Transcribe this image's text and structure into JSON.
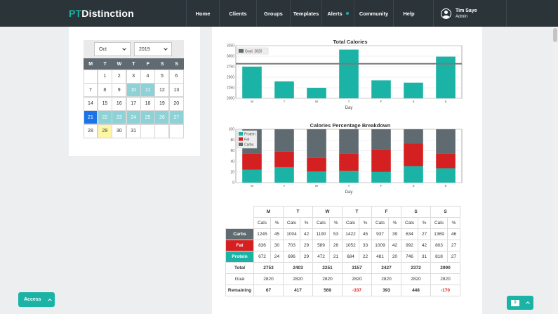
{
  "nav": {
    "logo_pt": "PT",
    "logo_rest": "Distinction",
    "items": [
      {
        "label": "Home",
        "width": 47
      },
      {
        "label": "Clients",
        "width": 53
      },
      {
        "label": "Groups",
        "width": 48
      },
      {
        "label": "Templates",
        "width": 45
      },
      {
        "label": "Alerts",
        "width": 46
      },
      {
        "label": "Community",
        "width": 56
      },
      {
        "label": "Help",
        "width": 44
      }
    ],
    "user_name": "Tim Saye",
    "user_role": "Admin"
  },
  "calendar": {
    "month": "Oct",
    "year": "2019",
    "weekdays": [
      "M",
      "T",
      "W",
      "T",
      "F",
      "S",
      "S"
    ],
    "cells": [
      {
        "d": ""
      },
      {
        "d": "1"
      },
      {
        "d": "2"
      },
      {
        "d": "3"
      },
      {
        "d": "4"
      },
      {
        "d": "5"
      },
      {
        "d": "6"
      },
      {
        "d": "7"
      },
      {
        "d": "8"
      },
      {
        "d": "9"
      },
      {
        "d": "10",
        "s": "teal"
      },
      {
        "d": "11",
        "s": "teal"
      },
      {
        "d": "12"
      },
      {
        "d": "13"
      },
      {
        "d": "14"
      },
      {
        "d": "15"
      },
      {
        "d": "16"
      },
      {
        "d": "17"
      },
      {
        "d": "18"
      },
      {
        "d": "19"
      },
      {
        "d": "20"
      },
      {
        "d": "21",
        "s": "sel-day"
      },
      {
        "d": "22",
        "s": "teal"
      },
      {
        "d": "23",
        "s": "teal"
      },
      {
        "d": "24",
        "s": "teal"
      },
      {
        "d": "25",
        "s": "teal"
      },
      {
        "d": "26",
        "s": "teal"
      },
      {
        "d": "27",
        "s": "teal"
      },
      {
        "d": "28"
      },
      {
        "d": "29",
        "s": "today"
      },
      {
        "d": "30"
      },
      {
        "d": "31"
      },
      {
        "d": ""
      },
      {
        "d": ""
      },
      {
        "d": ""
      }
    ]
  },
  "colors": {
    "teal": "#1ab3a6",
    "red": "#d42020",
    "gray": "#5f6b71"
  },
  "chart_data": [
    {
      "type": "bar",
      "title": "Total Calories",
      "xlabel": "Day",
      "ylabel": "",
      "categories": [
        "M",
        "T",
        "W",
        "T",
        "F",
        "S",
        "S"
      ],
      "values": [
        2753,
        2403,
        2251,
        3157,
        2427,
        2372,
        2990
      ],
      "goal_label": "Goal: 2820",
      "goal": 2820,
      "ylim": [
        2000,
        3250
      ],
      "yticks": [
        "2000",
        "2250",
        "2500",
        "2750",
        "3000",
        "3250"
      ],
      "grid": true,
      "legend": "top-left"
    },
    {
      "type": "bar",
      "stacked": true,
      "title": "Calories Percentage Breakdown",
      "xlabel": "Day",
      "categories": [
        "M",
        "T",
        "W",
        "T",
        "F",
        "S",
        "S"
      ],
      "ylim": [
        0,
        100
      ],
      "yticks": [
        "0",
        "20",
        "40",
        "60",
        "80",
        "100"
      ],
      "legend": "top-left",
      "series": [
        {
          "name": "Protein",
          "values": [
            24,
            29,
            21,
            22,
            20,
            31,
            27
          ]
        },
        {
          "name": "Fat",
          "values": [
            30,
            29,
            26,
            33,
            42,
            42,
            27
          ]
        },
        {
          "name": "Carbs",
          "values": [
            45,
            42,
            53,
            45,
            39,
            27,
            46
          ]
        }
      ]
    }
  ],
  "table": {
    "days": [
      "M",
      "T",
      "W",
      "T",
      "F",
      "S",
      "S"
    ],
    "sub": [
      "Cals",
      "%"
    ],
    "rows": [
      {
        "label": "Carbs",
        "cls": "carbs",
        "cells": [
          "1245",
          "45",
          "1004",
          "42",
          "1190",
          "53",
          "1422",
          "45",
          "937",
          "39",
          "634",
          "27",
          "1369",
          "46"
        ]
      },
      {
        "label": "Fat",
        "cls": "fat",
        "cells": [
          "836",
          "30",
          "703",
          "29",
          "589",
          "26",
          "1052",
          "33",
          "1009",
          "42",
          "992",
          "42",
          "803",
          "27"
        ]
      },
      {
        "label": "Protein",
        "cls": "protein",
        "cells": [
          "672",
          "24",
          "696",
          "29",
          "472",
          "21",
          "684",
          "22",
          "481",
          "20",
          "746",
          "31",
          "818",
          "27"
        ]
      }
    ],
    "total_label": "Total",
    "totals": [
      "2753",
      "2403",
      "2251",
      "3157",
      "2427",
      "2372",
      "2990"
    ],
    "goal_label": "Goal",
    "goals": [
      "2820",
      "2820",
      "2820",
      "2820",
      "2820",
      "2820",
      "2820"
    ],
    "remaining_label": "Remaining",
    "remaining": [
      "67",
      "417",
      "569",
      "-337",
      "393",
      "448",
      "-170"
    ]
  },
  "access_label": "Access",
  "chat_count": "0"
}
